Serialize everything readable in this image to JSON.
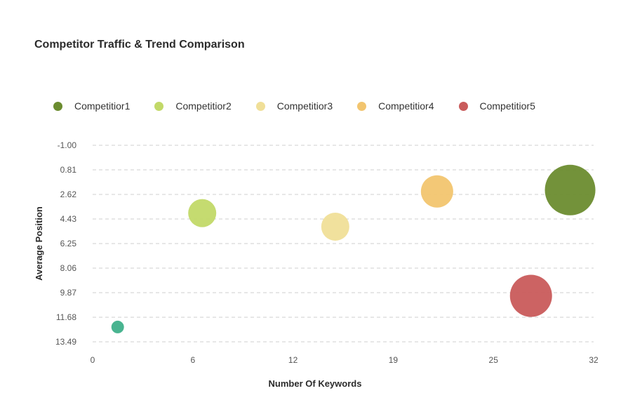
{
  "chart_data": {
    "type": "scatter",
    "title": "Competitor Traffic & Trend Comparison",
    "xlabel": "Number Of Keywords",
    "ylabel": "Average Position",
    "x_ticks": [
      "0",
      "6",
      "12",
      "19",
      "25",
      "32"
    ],
    "y_ticks": [
      "-1.00",
      "0.81",
      "2.62",
      "4.43",
      "6.25",
      "8.06",
      "9.87",
      "11.68",
      "13.49"
    ],
    "xlim": [
      0,
      32
    ],
    "ylim": [
      -1.0,
      13.49
    ],
    "y_inverted": true,
    "grid": "horizontal dashed",
    "legend_position": "top-left",
    "series": [
      {
        "name": "Competitior1",
        "color": "#6b8c2f",
        "points": [
          {
            "x": 30.5,
            "y": 2.3,
            "size": 36
          }
        ]
      },
      {
        "name": "Competitior2",
        "color": "#c2d968",
        "points": [
          {
            "x": 7.0,
            "y": 4.0,
            "size": 20
          }
        ]
      },
      {
        "name": "Competitior3",
        "color": "#f0df98",
        "points": [
          {
            "x": 15.5,
            "y": 5.0,
            "size": 20
          }
        ]
      },
      {
        "name": "Competitior4",
        "color": "#f2c56f",
        "points": [
          {
            "x": 22.0,
            "y": 2.4,
            "size": 23
          }
        ]
      },
      {
        "name": "Competitior5",
        "color": "#c95b5b",
        "points": [
          {
            "x": 28.0,
            "y": 10.1,
            "size": 30
          }
        ]
      },
      {
        "points": [
          {
            "x": 1.6,
            "y": 12.4,
            "size": 9
          }
        ],
        "color": "#3fb08a"
      }
    ]
  }
}
